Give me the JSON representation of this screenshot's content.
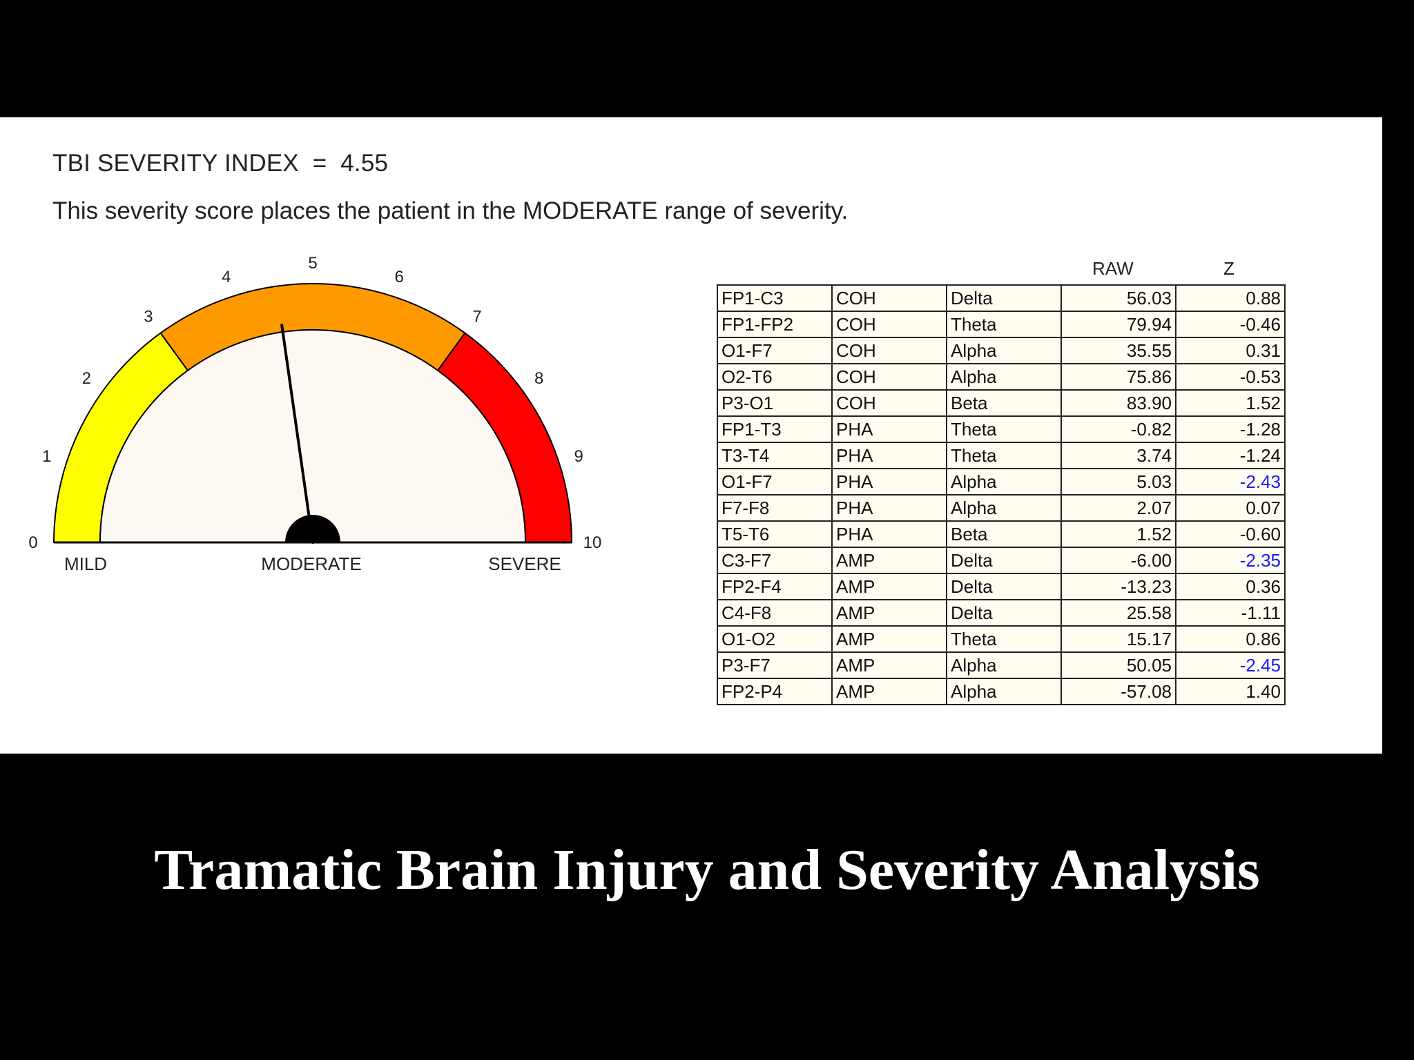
{
  "header": {
    "index_line": "TBI SEVERITY INDEX  =  4.55",
    "summary_line": "This severity score places the patient in the MODERATE range of severity."
  },
  "gauge": {
    "value": 4.55,
    "min": 0,
    "max": 10,
    "tick_labels": [
      "0",
      "1",
      "2",
      "3",
      "4",
      "5",
      "6",
      "7",
      "8",
      "9",
      "10"
    ],
    "zones": [
      {
        "label": "MILD",
        "from": 0,
        "to": 3,
        "color": "#ffff00"
      },
      {
        "label": "MODERATE",
        "from": 3,
        "to": 7,
        "color": "#ff9900"
      },
      {
        "label": "SEVERE",
        "from": 7,
        "to": 10,
        "color": "#ff0000"
      }
    ],
    "face_color": "#fdf9f2",
    "needle_color": "#000000"
  },
  "table": {
    "headers": {
      "raw": "RAW",
      "z": "Z"
    },
    "flag_color": "#1a1aff",
    "rows": [
      {
        "site": "FP1-C3",
        "measure": "COH",
        "band": "Delta",
        "raw": "56.03",
        "z": "0.88",
        "flag": false
      },
      {
        "site": "FP1-FP2",
        "measure": "COH",
        "band": "Theta",
        "raw": "79.94",
        "z": "-0.46",
        "flag": false
      },
      {
        "site": "O1-F7",
        "measure": "COH",
        "band": "Alpha",
        "raw": "35.55",
        "z": "0.31",
        "flag": false
      },
      {
        "site": "O2-T6",
        "measure": "COH",
        "band": "Alpha",
        "raw": "75.86",
        "z": "-0.53",
        "flag": false
      },
      {
        "site": "P3-O1",
        "measure": "COH",
        "band": "Beta",
        "raw": "83.90",
        "z": "1.52",
        "flag": false
      },
      {
        "site": "FP1-T3",
        "measure": "PHA",
        "band": "Theta",
        "raw": "-0.82",
        "z": "-1.28",
        "flag": false
      },
      {
        "site": "T3-T4",
        "measure": "PHA",
        "band": "Theta",
        "raw": "3.74",
        "z": "-1.24",
        "flag": false
      },
      {
        "site": "O1-F7",
        "measure": "PHA",
        "band": "Alpha",
        "raw": "5.03",
        "z": "-2.43",
        "flag": true
      },
      {
        "site": "F7-F8",
        "measure": "PHA",
        "band": "Alpha",
        "raw": "2.07",
        "z": "0.07",
        "flag": false
      },
      {
        "site": "T5-T6",
        "measure": "PHA",
        "band": "Beta",
        "raw": "1.52",
        "z": "-0.60",
        "flag": false
      },
      {
        "site": "C3-F7",
        "measure": "AMP",
        "band": "Delta",
        "raw": "-6.00",
        "z": "-2.35",
        "flag": true
      },
      {
        "site": "FP2-F4",
        "measure": "AMP",
        "band": "Delta",
        "raw": "-13.23",
        "z": "0.36",
        "flag": false
      },
      {
        "site": "C4-F8",
        "measure": "AMP",
        "band": "Delta",
        "raw": "25.58",
        "z": "-1.11",
        "flag": false
      },
      {
        "site": "O1-O2",
        "measure": "AMP",
        "band": "Theta",
        "raw": "15.17",
        "z": "0.86",
        "flag": false
      },
      {
        "site": "P3-F7",
        "measure": "AMP",
        "band": "Alpha",
        "raw": "50.05",
        "z": "-2.45",
        "flag": true
      },
      {
        "site": "FP2-P4",
        "measure": "AMP",
        "band": "Alpha",
        "raw": "-57.08",
        "z": "1.40",
        "flag": false
      }
    ]
  },
  "caption": "Tramatic Brain Injury and Severity Analysis"
}
